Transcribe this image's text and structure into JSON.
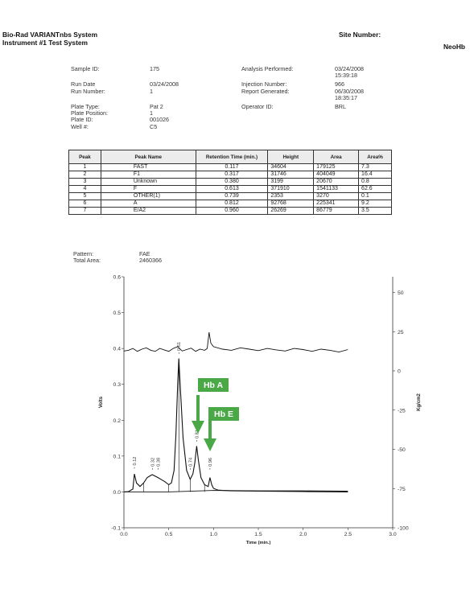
{
  "header": {
    "system_title": "Bio-Rad VARIANTnbs System",
    "instrument": "Instrument #1 Test System",
    "site_label": "Site Number:",
    "program": "NeoHb"
  },
  "sample": {
    "sample_id_label": "Sample ID:",
    "sample_id": "175",
    "run_date_label": "Run Date",
    "run_date": "03/24/2008",
    "run_number_label": "Run Number:",
    "run_number": "1",
    "plate_type_label": "Plate Type:",
    "plate_type": "Pat 2",
    "plate_position_label": "Plate Position:",
    "plate_position": "1",
    "plate_id_label": "Plate ID:",
    "plate_id": "001026",
    "well_label": "Well #:",
    "well": "C5"
  },
  "analysis": {
    "performed_label": "Analysis Performed:",
    "performed_date": "03/24/2008",
    "performed_time": "15:39:18",
    "injection_label": "Injection Number:",
    "injection": "966",
    "report_label": "Report Generated:",
    "report_date": "06/30/2008",
    "report_time": "18:35:17",
    "operator_label": "Operator ID:",
    "operator": "BRL"
  },
  "peak_table": {
    "headers": [
      "Peak",
      "Peak Name",
      "Retention Time (min.)",
      "Height",
      "Area",
      "Area%"
    ],
    "rows": [
      [
        "1",
        "FAST",
        "0.117",
        "34604",
        "179125",
        "7.3"
      ],
      [
        "2",
        "F1",
        "0.317",
        "31746",
        "404049",
        "16.4"
      ],
      [
        "3",
        "Unknown",
        "0.380",
        "3199",
        "20670",
        "0.8"
      ],
      [
        "4",
        "F",
        "0.613",
        "371910",
        "1541133",
        "62.6"
      ],
      [
        "5",
        "OTHER(1)",
        "0.739",
        "2353",
        "3270",
        "0.1"
      ],
      [
        "6",
        "A",
        "0.812",
        "92768",
        "225341",
        "9.2"
      ],
      [
        "7",
        "E/A2",
        "0.960",
        "26269",
        "86779",
        "3.5"
      ]
    ]
  },
  "pattern": {
    "pattern_label": "Pattern:",
    "pattern": "FAE",
    "total_area_label": "Total Area:",
    "total_area": "2460366"
  },
  "chart_data": {
    "type": "line",
    "xlabel": "Time (min.)",
    "ylabel": "Volts",
    "y2label": "Kg/cm2",
    "xlim": [
      0,
      3.0
    ],
    "ylim": [
      -0.1,
      0.6
    ],
    "y2lim": [
      -100,
      60
    ],
    "x_ticks": [
      0.0,
      0.5,
      1.0,
      1.5,
      2.0,
      2.5,
      3.0
    ],
    "x_tick_labels": [
      "0.0",
      "0.5",
      "1.0",
      "1.5",
      "2.0",
      "2.5",
      "3.0"
    ],
    "y_ticks": [
      -0.1,
      0.0,
      0.1,
      0.2,
      0.3,
      0.4,
      0.5,
      0.6
    ],
    "y_tick_labels": [
      "-0.1",
      "0.0",
      "0.1",
      "0.2",
      "0.3",
      "0.4",
      "0.5",
      "0.6"
    ],
    "y2_ticks": [
      -100,
      -75,
      -50,
      -25,
      0,
      25,
      50
    ],
    "y2_tick_labels": [
      "-100",
      "-75",
      "-50",
      "-25",
      "0",
      "25",
      "50"
    ],
    "series": [
      {
        "x": [
          0.0,
          0.05,
          0.1,
          0.117,
          0.14,
          0.18,
          0.22,
          0.26,
          0.3,
          0.317,
          0.34,
          0.38,
          0.42,
          0.46,
          0.5,
          0.53,
          0.56,
          0.58,
          0.6,
          0.613,
          0.63,
          0.66,
          0.7,
          0.739,
          0.77,
          0.79,
          0.812,
          0.83,
          0.86,
          0.9,
          0.94,
          0.96,
          0.98,
          1.0,
          1.05,
          1.1,
          1.2,
          1.5,
          2.0,
          2.5
        ],
        "y": [
          0.0,
          0.001,
          0.008,
          0.05,
          0.025,
          0.015,
          0.025,
          0.04,
          0.046,
          0.048,
          0.045,
          0.04,
          0.034,
          0.028,
          0.02,
          0.025,
          0.06,
          0.16,
          0.3,
          0.372,
          0.29,
          0.15,
          0.06,
          0.035,
          0.05,
          0.08,
          0.128,
          0.09,
          0.04,
          0.02,
          0.015,
          0.04,
          0.02,
          0.01,
          0.005,
          0.004,
          0.003,
          0.002,
          0.001,
          0.0
        ]
      },
      {
        "x": [
          0.0,
          0.05,
          0.1,
          0.15,
          0.2,
          0.25,
          0.3,
          0.35,
          0.4,
          0.45,
          0.5,
          0.55,
          0.6,
          0.65,
          0.7,
          0.75,
          0.8,
          0.85,
          0.9,
          0.93,
          0.95,
          0.97,
          1.0,
          1.1,
          1.2,
          1.3,
          1.4,
          1.5,
          1.6,
          1.7,
          1.8,
          1.9,
          2.0,
          2.1,
          2.2,
          2.3,
          2.4,
          2.5
        ],
        "y": [
          0.393,
          0.395,
          0.4,
          0.392,
          0.398,
          0.402,
          0.395,
          0.392,
          0.4,
          0.396,
          0.392,
          0.4,
          0.405,
          0.393,
          0.397,
          0.401,
          0.392,
          0.398,
          0.395,
          0.4,
          0.445,
          0.415,
          0.405,
          0.398,
          0.395,
          0.402,
          0.398,
          0.394,
          0.4,
          0.396,
          0.393,
          0.4,
          0.397,
          0.392,
          0.398,
          0.395,
          0.39,
          0.397
        ]
      },
      {
        "x": [
          0.0,
          0.5,
          1.0,
          1.5,
          2.0,
          2.5
        ],
        "y": [
          0.0,
          0.0,
          0.004,
          0.003,
          0.003,
          0.002
        ]
      }
    ],
    "peak_labels": [
      {
        "x": 0.117,
        "label": "0.12",
        "tip": 0.065
      },
      {
        "x": 0.317,
        "label": "0.32",
        "tip": 0.062
      },
      {
        "x": 0.38,
        "label": "0.38",
        "tip": 0.062
      },
      {
        "x": 0.613,
        "label": "0.61",
        "tip": 0.385
      },
      {
        "x": 0.739,
        "label": "0.74",
        "tip": 0.062
      },
      {
        "x": 0.812,
        "label": "0.81",
        "tip": 0.14
      },
      {
        "x": 0.96,
        "label": "0.96",
        "tip": 0.062
      }
    ],
    "annotations": [
      {
        "text": "Hb A",
        "x": 0.812,
        "color": "#4aa847"
      },
      {
        "text": "Hb E",
        "x": 0.96,
        "color": "#4aa847"
      }
    ]
  }
}
